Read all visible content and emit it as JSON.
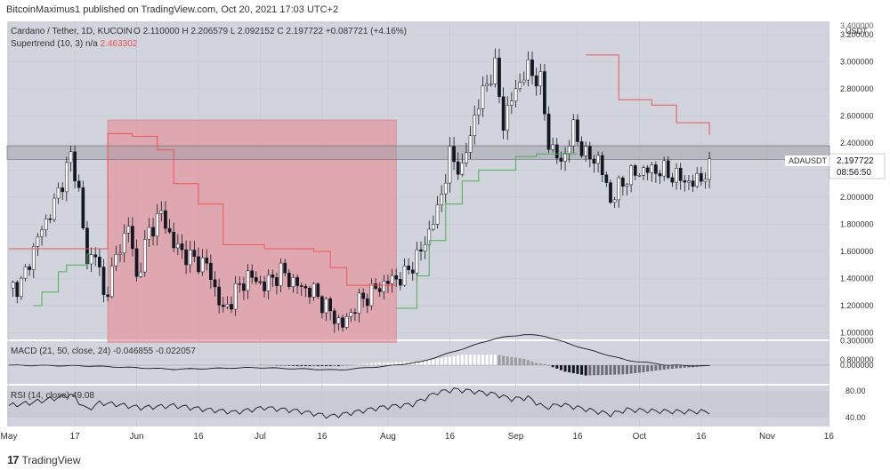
{
  "header": {
    "publisher": "BitcoinMaximus1 published on TradingView.com, Oct 20, 2021 17:03 UTC+2"
  },
  "legend": {
    "symbol_line": "Cardano / Tether, 1D, KUCOIN",
    "o_label": "O",
    "o": "2.110000",
    "h_label": "H",
    "h": "2.206579",
    "l_label": "L",
    "l": "2.092152",
    "c_label": "C",
    "c": "2.197722",
    "change": "+0.087721 (+4.16%)",
    "supertrend_label": "Supertrend (10, 3)",
    "supertrend_na": "n/a",
    "supertrend_value": "2.463302"
  },
  "price_badge": {
    "symbol": "ADAUSDT",
    "price": "2.197722",
    "countdown": "08:56:50"
  },
  "price_axis": {
    "unit": "USDT",
    "top_label": "3.400000"
  },
  "macd_legend": {
    "label": "MACD (21, 50, close, 24)",
    "v1": "-0.046855",
    "v2": "-0.022057"
  },
  "rsi_legend": {
    "label": "RSI (14, close)",
    "value": "49.08"
  },
  "footer": {
    "brand": "TradingView",
    "logo_glyph": "17"
  },
  "colors": {
    "bg": "#d1d4dc",
    "up": "#ffffff",
    "down": "#131722",
    "supertrend_down": "#ef5350",
    "supertrend_up": "#4caf50",
    "highlight": "#e6959e",
    "zone": "#9a9ca4"
  },
  "chart_data": {
    "type": "candlestick",
    "price_ticks": [
      0.8,
      1.0,
      1.2,
      1.4,
      1.6,
      1.8,
      2.0,
      2.2,
      2.4,
      2.6,
      2.8,
      3.0,
      3.2
    ],
    "price_tick_labels": [
      "0.800000",
      "1.000000",
      "1.200000",
      "1.400000",
      "1.600000",
      "1.800000",
      "2.000000",
      "2.200000",
      "2.400000",
      "2.600000",
      "2.800000",
      "3.000000",
      "3.200000"
    ],
    "macd_ticks": [
      0.3,
      0.0
    ],
    "macd_tick_labels": [
      "0.300000",
      "0.000000"
    ],
    "rsi_ticks": [
      80,
      40
    ],
    "rsi_tick_labels": [
      "80.00",
      "40.00"
    ],
    "x_ticks": [
      {
        "day": 0,
        "label": "May"
      },
      {
        "day": 16,
        "label": "17"
      },
      {
        "day": 31,
        "label": "Jun"
      },
      {
        "day": 46,
        "label": "16"
      },
      {
        "day": 61,
        "label": "Jul"
      },
      {
        "day": 76,
        "label": "16"
      },
      {
        "day": 92,
        "label": "Aug"
      },
      {
        "day": 107,
        "label": "16"
      },
      {
        "day": 123,
        "label": "Sep"
      },
      {
        "day": 138,
        "label": "16"
      },
      {
        "day": 153,
        "label": "Oct"
      },
      {
        "day": 168,
        "label": "16"
      },
      {
        "day": 184,
        "label": "Nov"
      },
      {
        "day": 199,
        "label": "16"
      }
    ],
    "close_anchors": [
      [
        0,
        1.33
      ],
      [
        3,
        1.36
      ],
      [
        7,
        1.7
      ],
      [
        11,
        1.95
      ],
      [
        15,
        2.3
      ],
      [
        17,
        2.05
      ],
      [
        19,
        1.5
      ],
      [
        21,
        1.62
      ],
      [
        23,
        1.25
      ],
      [
        26,
        1.55
      ],
      [
        29,
        1.8
      ],
      [
        31,
        1.4
      ],
      [
        34,
        1.75
      ],
      [
        37,
        1.88
      ],
      [
        40,
        1.65
      ],
      [
        44,
        1.55
      ],
      [
        48,
        1.5
      ],
      [
        52,
        1.15
      ],
      [
        55,
        1.3
      ],
      [
        58,
        1.42
      ],
      [
        62,
        1.35
      ],
      [
        66,
        1.45
      ],
      [
        70,
        1.35
      ],
      [
        74,
        1.3
      ],
      [
        78,
        1.15
      ],
      [
        81,
        1.05
      ],
      [
        84,
        1.2
      ],
      [
        88,
        1.3
      ],
      [
        92,
        1.38
      ],
      [
        96,
        1.42
      ],
      [
        100,
        1.6
      ],
      [
        104,
        1.9
      ],
      [
        107,
        2.3
      ],
      [
        110,
        2.2
      ],
      [
        113,
        2.6
      ],
      [
        116,
        2.85
      ],
      [
        118,
        2.95
      ],
      [
        120,
        2.55
      ],
      [
        123,
        2.8
      ],
      [
        126,
        2.95
      ],
      [
        129,
        2.85
      ],
      [
        131,
        2.4
      ],
      [
        134,
        2.25
      ],
      [
        137,
        2.5
      ],
      [
        140,
        2.3
      ],
      [
        143,
        2.28
      ],
      [
        146,
        1.98
      ],
      [
        150,
        2.15
      ],
      [
        154,
        2.2
      ],
      [
        158,
        2.2
      ],
      [
        162,
        2.15
      ],
      [
        166,
        2.1
      ],
      [
        170,
        2.2
      ]
    ],
    "supertrend_red": [
      [
        0,
        1.62
      ],
      [
        6,
        1.62
      ],
      [
        9,
        1.62
      ],
      [
        24,
        2.47
      ],
      [
        30,
        2.45
      ],
      [
        36,
        2.35
      ],
      [
        40,
        2.1
      ],
      [
        46,
        1.95
      ],
      [
        52,
        1.65
      ],
      [
        62,
        1.62
      ],
      [
        74,
        1.6
      ],
      [
        78,
        1.48
      ],
      [
        82,
        1.35
      ],
      [
        94,
        1.35
      ]
    ],
    "supertrend_red_2": [
      [
        140,
        3.05
      ],
      [
        148,
        2.72
      ],
      [
        156,
        2.68
      ],
      [
        162,
        2.55
      ],
      [
        170,
        2.46
      ]
    ],
    "supertrend_green": [
      [
        6,
        1.2
      ],
      [
        8,
        1.3
      ],
      [
        12,
        1.45
      ],
      [
        14,
        1.5
      ],
      [
        19,
        1.58
      ],
      [
        20,
        1.58
      ]
    ],
    "supertrend_green_2": [
      [
        94,
        1.18
      ],
      [
        99,
        1.42
      ],
      [
        102,
        1.68
      ],
      [
        106,
        1.95
      ],
      [
        110,
        2.12
      ],
      [
        114,
        2.2
      ],
      [
        123,
        2.3
      ],
      [
        128,
        2.32
      ],
      [
        138,
        2.32
      ]
    ],
    "highlight_box": {
      "day_from": 24,
      "day_to": 94,
      "price_from": 0.93,
      "price_to": 2.57
    },
    "resistance_zone": {
      "price_from": 2.28,
      "price_to": 2.38
    },
    "macd_anchors": [
      [
        0,
        0.0
      ],
      [
        20,
        -0.01
      ],
      [
        40,
        -0.05
      ],
      [
        60,
        -0.03
      ],
      [
        80,
        -0.06
      ],
      [
        92,
        -0.01
      ],
      [
        100,
        0.04
      ],
      [
        110,
        0.2
      ],
      [
        118,
        0.33
      ],
      [
        125,
        0.38
      ],
      [
        130,
        0.36
      ],
      [
        140,
        0.2
      ],
      [
        150,
        0.06
      ],
      [
        160,
        0.0
      ],
      [
        170,
        -0.01
      ]
    ],
    "rsi_anchors": [
      [
        0,
        58
      ],
      [
        5,
        62
      ],
      [
        12,
        70
      ],
      [
        15,
        75
      ],
      [
        19,
        52
      ],
      [
        22,
        62
      ],
      [
        26,
        60
      ],
      [
        32,
        55
      ],
      [
        40,
        58
      ],
      [
        48,
        52
      ],
      [
        55,
        48
      ],
      [
        62,
        55
      ],
      [
        70,
        50
      ],
      [
        78,
        42
      ],
      [
        82,
        46
      ],
      [
        90,
        55
      ],
      [
        98,
        60
      ],
      [
        104,
        78
      ],
      [
        108,
        82
      ],
      [
        112,
        80
      ],
      [
        118,
        75
      ],
      [
        122,
        68
      ],
      [
        126,
        70
      ],
      [
        130,
        55
      ],
      [
        134,
        60
      ],
      [
        138,
        55
      ],
      [
        142,
        50
      ],
      [
        146,
        45
      ],
      [
        150,
        52
      ],
      [
        156,
        50
      ],
      [
        162,
        49
      ],
      [
        170,
        49
      ]
    ]
  }
}
